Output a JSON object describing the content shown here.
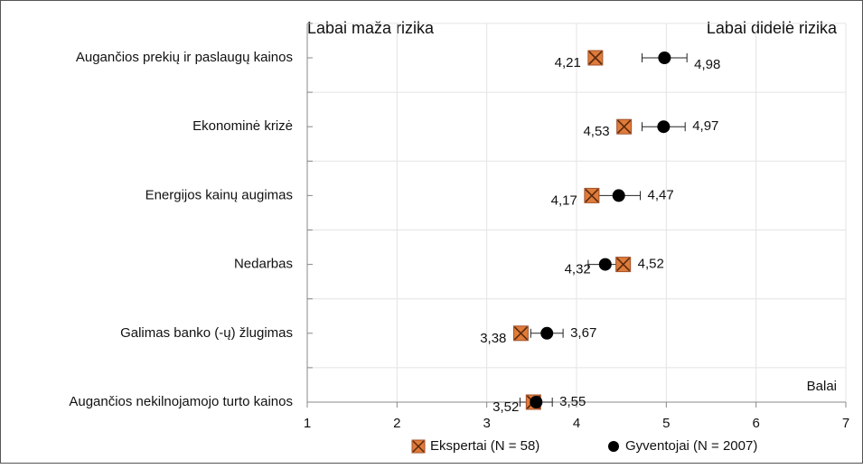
{
  "chart_data": {
    "type": "dotplot",
    "left_label": "Labai maža rizika",
    "right_label": "Labai didelė rizika",
    "x_label": "Balai",
    "categories": [
      "Augančios prekių ir paslaugų kainos",
      "Ekonominė krizė",
      "Energijos kainų augimas",
      "Nedarbas",
      "Galimas banko (-ų) žlugimas",
      "Augančios nekilnojamojo turto kainos"
    ],
    "series": [
      {
        "name": "Ekspertai (N = 58)",
        "color": "#e07b39",
        "marker": "x-square",
        "values": [
          4.21,
          4.53,
          4.17,
          4.52,
          3.38,
          3.52
        ],
        "value_labels": [
          "4,21",
          "4,53",
          "4,17",
          "4,52",
          "3,38",
          "3,52"
        ]
      },
      {
        "name": "Gyventojai (N = 2007)",
        "color": "#000000",
        "marker": "circle",
        "values": [
          4.98,
          4.97,
          4.47,
          4.32,
          3.67,
          3.55
        ],
        "value_labels": [
          "4,98",
          "4,97",
          "4,47",
          "4,32",
          "3,67",
          "3,55"
        ],
        "errors": [
          0.25,
          0.24,
          0.24,
          0.19,
          0.18,
          0.18
        ]
      }
    ],
    "xlim": [
      1,
      7
    ],
    "xticks": [
      1,
      2,
      3,
      4,
      5,
      6,
      7
    ],
    "grid": true
  }
}
